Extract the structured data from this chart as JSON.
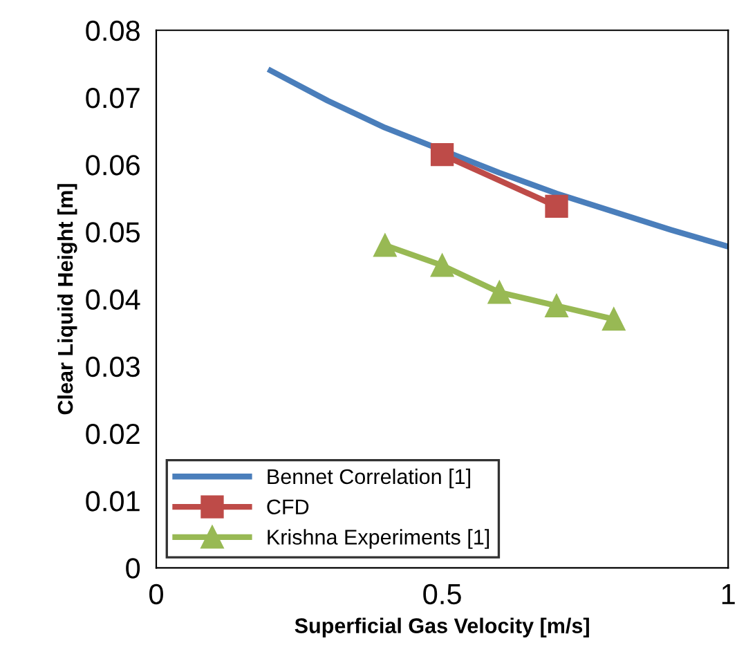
{
  "chart_data": {
    "type": "line",
    "xlabel": "Superficial Gas Velocity [m/s]",
    "ylabel": "Clear Liquid Height [m]",
    "xlim": [
      0,
      1
    ],
    "xticks": [
      0,
      0.5,
      1
    ],
    "ylim": [
      0,
      0.08
    ],
    "yticks": [
      0,
      0.01,
      0.02,
      0.03,
      0.04,
      0.05,
      0.06,
      0.07,
      0.08
    ],
    "grid": false,
    "legend": "bottom left",
    "series": [
      {
        "name": "Bennet Correlation [1]",
        "color": "#4a7ebb",
        "marker": "none",
        "x": [
          0.2,
          0.3,
          0.4,
          0.6,
          0.7,
          0.8,
          0.9,
          1.0
        ],
        "values": [
          0.074,
          0.0695,
          0.0655,
          0.0588,
          0.0557,
          0.053,
          0.0503,
          0.0478
        ]
      },
      {
        "name": "CFD",
        "color": "#be4b48",
        "marker": "square",
        "x": [
          0.5,
          0.7
        ],
        "values": [
          0.0615,
          0.0538
        ]
      },
      {
        "name": "Krishna Experiments [1]",
        "color": "#98b954",
        "marker": "triangle",
        "x": [
          0.4,
          0.5,
          0.6,
          0.7,
          0.8
        ],
        "values": [
          0.048,
          0.045,
          0.041,
          0.039,
          0.037
        ]
      }
    ]
  }
}
